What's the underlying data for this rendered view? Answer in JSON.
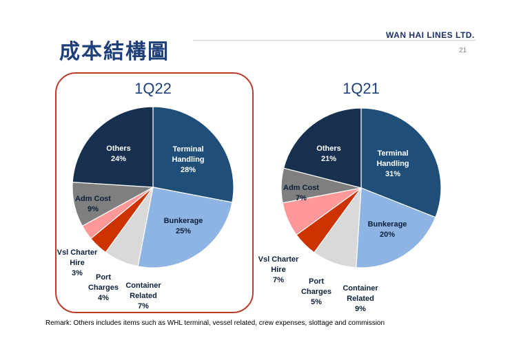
{
  "header": {
    "title": "成本結構圖",
    "brand": "WAN HAI LINES LTD.",
    "page_number": "21"
  },
  "colors": {
    "title": "#1f3f7a",
    "highlight_border": "#c0392b",
    "slice_colors": [
      "#1f4e79",
      "#8db4e2",
      "#d9d9d9",
      "#cc3300",
      "#ff9999",
      "#7f7f7f",
      "#17304f"
    ]
  },
  "chart_data": [
    {
      "type": "pie",
      "title": "1Q22",
      "categories": [
        "Terminal Handling",
        "Bunkerage",
        "Container Related",
        "Port Charges",
        "Vsl Charter Hire",
        "Adm Cost",
        "Others"
      ],
      "values": [
        28,
        25,
        7,
        4,
        3,
        9,
        24
      ],
      "labels": [
        {
          "lines": [
            "Terminal",
            "Handling",
            "28%"
          ]
        },
        {
          "lines": [
            "Bunkerage",
            "25%"
          ]
        },
        {
          "lines": [
            "Container",
            "Related",
            "7%"
          ]
        },
        {
          "lines": [
            "Port",
            "Charges",
            "4%"
          ]
        },
        {
          "lines": [
            "Vsl Charter",
            "Hire",
            "3%"
          ]
        },
        {
          "lines": [
            "Adm Cost",
            "9%"
          ]
        },
        {
          "lines": [
            "Others",
            "24%"
          ]
        }
      ]
    },
    {
      "type": "pie",
      "title": "1Q21",
      "categories": [
        "Terminal Handling",
        "Bunkerage",
        "Container Related",
        "Port Charges",
        "Vsl Charter Hire",
        "Adm Cost",
        "Others"
      ],
      "values": [
        31,
        20,
        9,
        5,
        7,
        7,
        21
      ],
      "labels": [
        {
          "lines": [
            "Terminal",
            "Handling",
            "31%"
          ]
        },
        {
          "lines": [
            "Bunkerage",
            "20%"
          ]
        },
        {
          "lines": [
            "Container",
            "Related",
            "9%"
          ]
        },
        {
          "lines": [
            "Port",
            "Charges",
            "5%"
          ]
        },
        {
          "lines": [
            "Vsl Charter",
            "Hire",
            "7%"
          ]
        },
        {
          "lines": [
            "Adm Cost",
            "7%"
          ]
        },
        {
          "lines": [
            "Others",
            "21%"
          ]
        }
      ]
    }
  ],
  "remark": "Remark: Others includes items such as WHL terminal, vessel related, crew expenses, slottage and commission"
}
